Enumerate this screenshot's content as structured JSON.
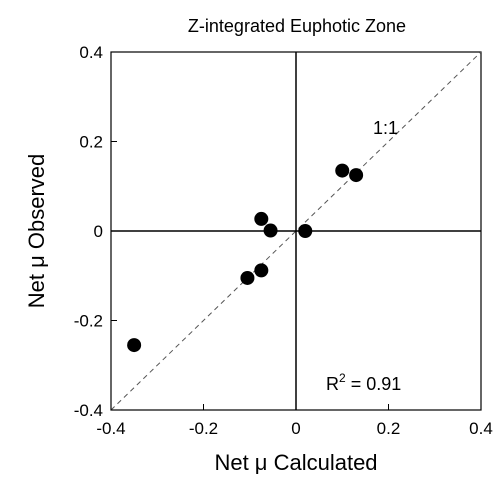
{
  "chart_data": {
    "type": "scatter",
    "title": "Z-integrated Euphotic Zone",
    "xlabel": "Net μ Calculated",
    "ylabel": "Net μ Observed",
    "xlim": [
      -0.4,
      0.4
    ],
    "ylim": [
      -0.4,
      0.4
    ],
    "xticks": [
      "-0.4",
      "-0.2",
      "0",
      "0.2",
      "0.4"
    ],
    "yticks": [
      "-0.4",
      "-0.2",
      "0",
      "0.2",
      "0.4"
    ],
    "grid": false,
    "reference_line": {
      "label": "1:1",
      "style": "dashed",
      "slope": 1,
      "intercept": 0
    },
    "zero_lines": true,
    "annotation": {
      "base": "R",
      "sup": "2",
      "rest": " = 0.91"
    },
    "marker_color": "#000000",
    "points": [
      {
        "x": -0.35,
        "y": -0.255
      },
      {
        "x": -0.105,
        "y": -0.105
      },
      {
        "x": -0.075,
        "y": -0.088
      },
      {
        "x": -0.075,
        "y": 0.027
      },
      {
        "x": -0.055,
        "y": 0.001
      },
      {
        "x": 0.02,
        "y": 0.0
      },
      {
        "x": 0.1,
        "y": 0.135
      },
      {
        "x": 0.13,
        "y": 0.125
      }
    ]
  }
}
